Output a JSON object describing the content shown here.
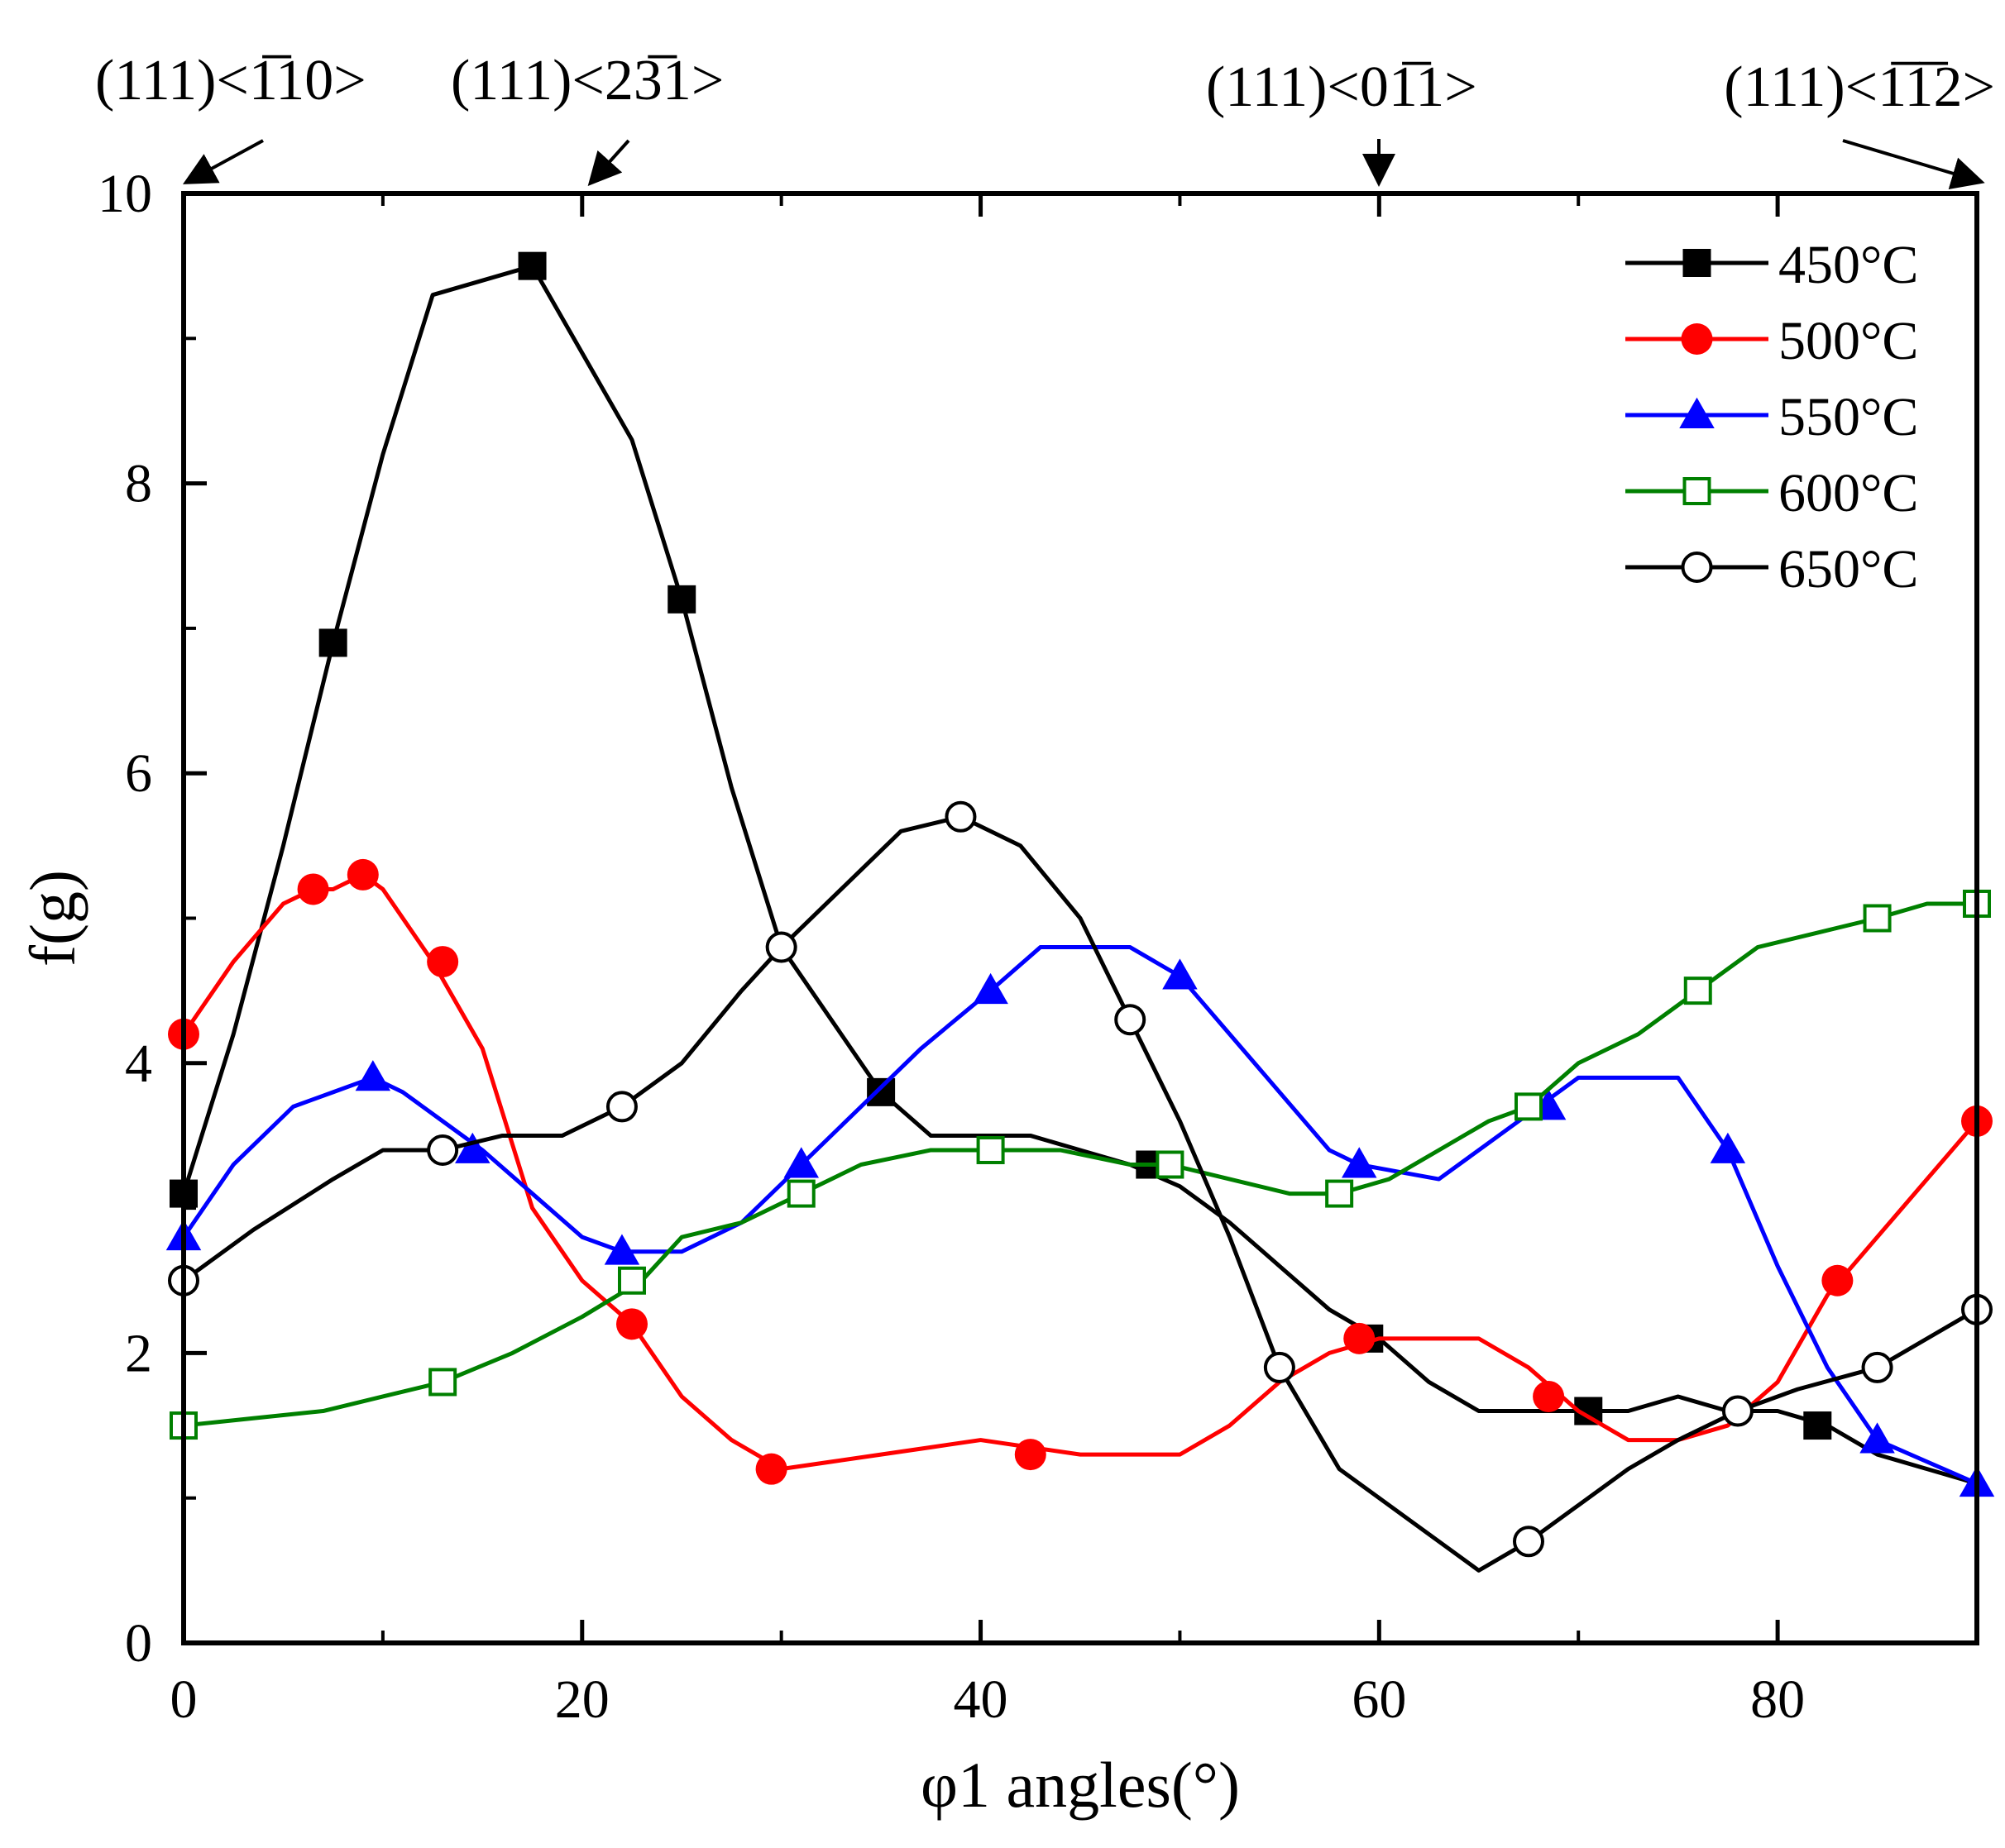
{
  "chart_data": {
    "type": "line",
    "xlabel": "φ1 angles(°)",
    "ylabel": "f(g)",
    "xlim": [
      0,
      90
    ],
    "ylim": [
      0,
      10
    ],
    "xticks": [
      0,
      20,
      40,
      60,
      80
    ],
    "yticks": [
      0,
      2,
      4,
      6,
      8,
      10
    ],
    "grid": false,
    "legend_position": "top-right",
    "top_annotations": [
      {
        "label": "(111)<1̅10>",
        "x": 0
      },
      {
        "label": "(111)<23̅1>",
        "x": 20
      },
      {
        "label": "(111)<01̅1>",
        "x": 60
      },
      {
        "label": "(111)<1̅1̅2>",
        "x": 90
      }
    ],
    "series": [
      {
        "name": "450°C",
        "color": "#000000",
        "marker": "square-filled",
        "x": [
          0,
          2.5,
          5,
          7.5,
          10,
          12.5,
          15,
          17.5,
          20,
          22.5,
          25,
          27.5,
          30,
          32.5,
          35,
          37.5,
          40,
          42.5,
          45,
          47.5,
          50,
          52.5,
          55,
          57.5,
          60,
          62.5,
          65,
          67.5,
          70,
          72.5,
          75,
          77.5,
          80,
          82.5,
          85,
          87.5,
          90
        ],
        "y": [
          3.1,
          4.2,
          5.5,
          6.9,
          8.2,
          9.3,
          9.4,
          9.5,
          8.9,
          8.3,
          7.2,
          5.9,
          4.8,
          4.3,
          3.8,
          3.5,
          3.5,
          3.5,
          3.4,
          3.3,
          3.15,
          2.9,
          2.6,
          2.3,
          2.1,
          1.8,
          1.6,
          1.6,
          1.6,
          1.6,
          1.7,
          1.6,
          1.6,
          1.5,
          1.3,
          1.2,
          1.1
        ],
        "marker_x": [
          0,
          7.5,
          17.5,
          25,
          35,
          48.5,
          59.5,
          70.5,
          82
        ],
        "marker_y": [
          3.1,
          6.9,
          9.5,
          7.2,
          3.8,
          3.3,
          2.1,
          1.6,
          1.5
        ]
      },
      {
        "name": "500°C",
        "color": "#ff0000",
        "marker": "circle-filled",
        "x": [
          0,
          2.5,
          5,
          6.5,
          7.5,
          9,
          10,
          12.5,
          15,
          17.5,
          20,
          22.5,
          25,
          27.5,
          30,
          32.5,
          35,
          37.5,
          40,
          42.5,
          45,
          47.5,
          50,
          52.5,
          55,
          57.5,
          60,
          62.5,
          65,
          67.5,
          70,
          72.5,
          75,
          77.5,
          80,
          82.5,
          85,
          87.5,
          90
        ],
        "y": [
          4.2,
          4.7,
          5.1,
          5.2,
          5.2,
          5.3,
          5.2,
          4.7,
          4.1,
          3.0,
          2.5,
          2.2,
          1.7,
          1.4,
          1.2,
          1.25,
          1.3,
          1.35,
          1.4,
          1.35,
          1.3,
          1.3,
          1.3,
          1.5,
          1.8,
          2.0,
          2.1,
          2.1,
          2.1,
          1.9,
          1.6,
          1.4,
          1.4,
          1.5,
          1.8,
          2.4,
          2.8,
          3.2,
          3.6
        ],
        "marker_x": [
          0,
          6.5,
          9,
          13,
          22.5,
          29.5,
          42.5,
          59,
          68.5,
          83,
          90
        ],
        "marker_y": [
          4.2,
          5.2,
          5.3,
          4.7,
          2.2,
          1.2,
          1.3,
          2.1,
          1.7,
          2.5,
          3.6
        ]
      },
      {
        "name": "550°C",
        "color": "#0000ff",
        "marker": "triangle-filled",
        "x": [
          0,
          2.5,
          5.5,
          7.5,
          9.5,
          11,
          13,
          15,
          17.5,
          20,
          22,
          25,
          28,
          31,
          34,
          37,
          40.5,
          43,
          45,
          47.5,
          50,
          52.5,
          55,
          57.5,
          59,
          61,
          63,
          65,
          68,
          70,
          72.5,
          75,
          77.5,
          80,
          82.5,
          85,
          87.5,
          90
        ],
        "y": [
          2.8,
          3.3,
          3.7,
          3.8,
          3.9,
          3.8,
          3.6,
          3.4,
          3.1,
          2.8,
          2.7,
          2.7,
          2.9,
          3.3,
          3.7,
          4.1,
          4.5,
          4.8,
          4.8,
          4.8,
          4.6,
          4.2,
          3.8,
          3.4,
          3.3,
          3.25,
          3.2,
          3.4,
          3.7,
          3.9,
          3.9,
          3.9,
          3.4,
          2.6,
          1.9,
          1.4,
          1.25,
          1.1
        ],
        "marker_x": [
          0,
          9.5,
          14.5,
          22,
          31,
          40.5,
          50,
          59,
          68.5,
          77.5,
          85,
          90
        ],
        "marker_y": [
          2.8,
          3.9,
          3.4,
          2.7,
          3.3,
          4.5,
          4.6,
          3.3,
          3.7,
          3.4,
          1.4,
          1.1
        ]
      },
      {
        "name": "600°C",
        "color": "#008000",
        "marker": "square-open",
        "x": [
          0,
          3.5,
          7,
          10,
          13,
          16.5,
          20,
          23,
          25,
          28,
          31,
          34,
          37.5,
          40.5,
          44,
          47.5,
          49.5,
          52.5,
          55.5,
          58,
          60.5,
          63,
          65.5,
          67.5,
          70,
          73,
          76,
          79,
          82,
          85,
          87.5,
          90
        ],
        "y": [
          1.5,
          1.55,
          1.6,
          1.7,
          1.8,
          2.0,
          2.25,
          2.5,
          2.8,
          2.9,
          3.1,
          3.3,
          3.4,
          3.4,
          3.4,
          3.3,
          3.3,
          3.2,
          3.1,
          3.1,
          3.2,
          3.4,
          3.6,
          3.7,
          4.0,
          4.2,
          4.5,
          4.8,
          4.9,
          5.0,
          5.1,
          5.1
        ],
        "marker_x": [
          0,
          13,
          22.5,
          31,
          40.5,
          49.5,
          58,
          67.5,
          76,
          85,
          90
        ],
        "marker_y": [
          1.5,
          1.8,
          2.5,
          3.1,
          3.4,
          3.3,
          3.1,
          3.7,
          4.5,
          5.0,
          5.1
        ]
      },
      {
        "name": "650°C",
        "color": "#000000",
        "marker": "circle-open",
        "x": [
          0,
          3.5,
          7.5,
          10,
          13,
          16,
          19,
          22,
          25,
          28,
          30,
          33,
          36,
          39,
          42,
          45,
          47.5,
          50,
          52.5,
          55,
          58,
          61.5,
          65,
          67.5,
          70,
          72.5,
          75,
          78,
          81,
          85,
          87.5,
          90
        ],
        "y": [
          2.5,
          2.85,
          3.2,
          3.4,
          3.4,
          3.5,
          3.5,
          3.7,
          4.0,
          4.5,
          4.8,
          5.2,
          5.6,
          5.7,
          5.5,
          5.0,
          4.3,
          3.6,
          2.8,
          1.9,
          1.2,
          0.85,
          0.5,
          0.7,
          0.95,
          1.2,
          1.4,
          1.6,
          1.75,
          1.9,
          2.1,
          2.3
        ],
        "marker_x": [
          0,
          13,
          22,
          30,
          39,
          47.5,
          55,
          67.5,
          78,
          85,
          90
        ],
        "marker_y": [
          2.5,
          3.4,
          3.7,
          4.8,
          5.7,
          4.3,
          1.9,
          0.7,
          1.6,
          1.9,
          2.3
        ]
      }
    ]
  }
}
